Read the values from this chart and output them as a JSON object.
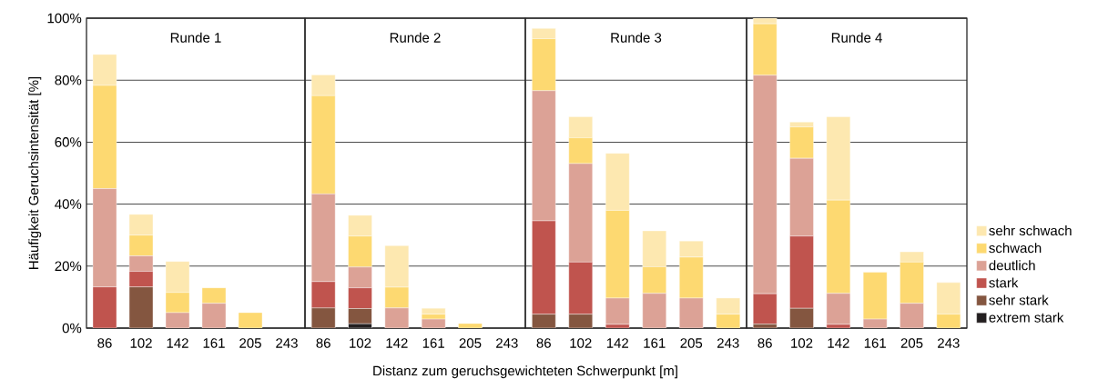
{
  "chart_data": [
    {
      "type": "bar",
      "stacked": true,
      "title": "Runde 1",
      "ylabel": "Häufigkeit Geruchsintensität [%]",
      "categories": [
        "86",
        "102",
        "142",
        "161",
        "205",
        "243"
      ],
      "ylim": [
        0,
        100
      ],
      "yticks": [
        {
          "value": 0,
          "label": "0%"
        },
        {
          "value": 20,
          "label": "20%"
        },
        {
          "value": 40,
          "label": "40%"
        },
        {
          "value": 60,
          "label": "60%"
        },
        {
          "value": 80,
          "label": "80%"
        },
        {
          "value": 100,
          "label": "100%"
        }
      ],
      "grid": "y",
      "series": [
        {
          "color": "#231f20",
          "values": [
            0,
            0,
            0,
            0,
            0,
            0
          ]
        },
        {
          "color": "#845640",
          "values": [
            0,
            13.3,
            0,
            0,
            0,
            0
          ]
        },
        {
          "color": "#c0544e",
          "values": [
            13.3,
            5,
            0,
            0,
            0,
            0
          ]
        },
        {
          "color": "#dca296",
          "values": [
            31.7,
            5,
            5,
            8,
            0,
            0
          ]
        },
        {
          "color": "#fdd971",
          "values": [
            33.3,
            6.7,
            6.5,
            5,
            5,
            0
          ]
        },
        {
          "color": "#fde8b0",
          "values": [
            10,
            6.7,
            10,
            0,
            0,
            0
          ]
        }
      ]
    },
    {
      "type": "bar",
      "stacked": true,
      "title": "Runde 2",
      "xlabel": "Distanz zum geruchsgewichteten Schwerpunkt [m]",
      "categories": [
        "86",
        "102",
        "142",
        "161",
        "205",
        "243"
      ],
      "ylim": [
        0,
        100
      ],
      "yticks": [
        0,
        20,
        40,
        60,
        80,
        100
      ],
      "grid": "y",
      "tick_labels": "x",
      "series": [
        {
          "color": "#231f20",
          "values": [
            0,
            1.4,
            0,
            0,
            0,
            0
          ]
        },
        {
          "color": "#845640",
          "values": [
            6.5,
            4.9,
            0,
            0,
            0,
            0
          ]
        },
        {
          "color": "#c0544e",
          "values": [
            8.5,
            6.7,
            0,
            0,
            0,
            0
          ]
        },
        {
          "color": "#dca296",
          "values": [
            28.3,
            6.7,
            6.5,
            2.9,
            0,
            0
          ]
        },
        {
          "color": "#fdd971",
          "values": [
            31.7,
            10,
            6.7,
            1.6,
            1.5,
            0
          ]
        },
        {
          "color": "#fde8b0",
          "values": [
            6.7,
            6.7,
            13.4,
            1.9,
            0,
            0
          ]
        }
      ]
    },
    {
      "type": "bar",
      "stacked": true,
      "title": "Runde 3",
      "categories": [
        "86",
        "102",
        "142",
        "161",
        "205",
        "243"
      ],
      "ylim": [
        0,
        100
      ],
      "yticks": [
        0,
        20,
        40,
        60,
        80,
        100
      ],
      "grid": "y",
      "tick_labels": "x",
      "series": [
        {
          "color": "#231f20",
          "values": [
            0,
            0,
            0,
            0,
            0,
            0
          ]
        },
        {
          "color": "#845640",
          "values": [
            4.5,
            4.5,
            0,
            0,
            0,
            0
          ]
        },
        {
          "color": "#c0544e",
          "values": [
            30.1,
            16.8,
            1.2,
            0,
            0,
            0
          ]
        },
        {
          "color": "#dca296",
          "values": [
            42,
            31.8,
            8.5,
            11.2,
            9.7,
            0
          ]
        },
        {
          "color": "#fdd971",
          "values": [
            16.8,
            8.3,
            28.3,
            8.6,
            13.2,
            4.5
          ]
        },
        {
          "color": "#fde8b0",
          "values": [
            3.3,
            6.8,
            18.4,
            11.6,
            5.2,
            5.2
          ]
        }
      ]
    },
    {
      "type": "bar",
      "stacked": true,
      "title": "Runde 4",
      "categories": [
        "86",
        "102",
        "142",
        "161",
        "205",
        "243"
      ],
      "ylim": [
        0,
        100
      ],
      "yticks": [
        0,
        20,
        40,
        60,
        80,
        100
      ],
      "grid": "y",
      "tick_labels": "x",
      "legend": "right",
      "series": [
        {
          "name": "extrem stark",
          "color": "#231f20",
          "values": [
            0,
            0,
            0,
            0,
            0,
            0
          ]
        },
        {
          "name": "sehr stark",
          "color": "#845640",
          "values": [
            1.3,
            6.4,
            0,
            0,
            0,
            0
          ]
        },
        {
          "name": "stark",
          "color": "#c0544e",
          "values": [
            9.8,
            23.3,
            1.2,
            0,
            0,
            0
          ]
        },
        {
          "name": "deutlich",
          "color": "#dca296",
          "values": [
            70.5,
            25.1,
            10,
            2.9,
            8,
            0
          ]
        },
        {
          "name": "schwach",
          "color": "#fdd971",
          "values": [
            16.6,
            10.1,
            30.1,
            15.1,
            13.3,
            4.5
          ]
        },
        {
          "name": "sehr schwach",
          "color": "#fde8b0",
          "values": [
            1.8,
            1.6,
            26.9,
            0,
            3.3,
            10.2
          ]
        }
      ]
    }
  ]
}
